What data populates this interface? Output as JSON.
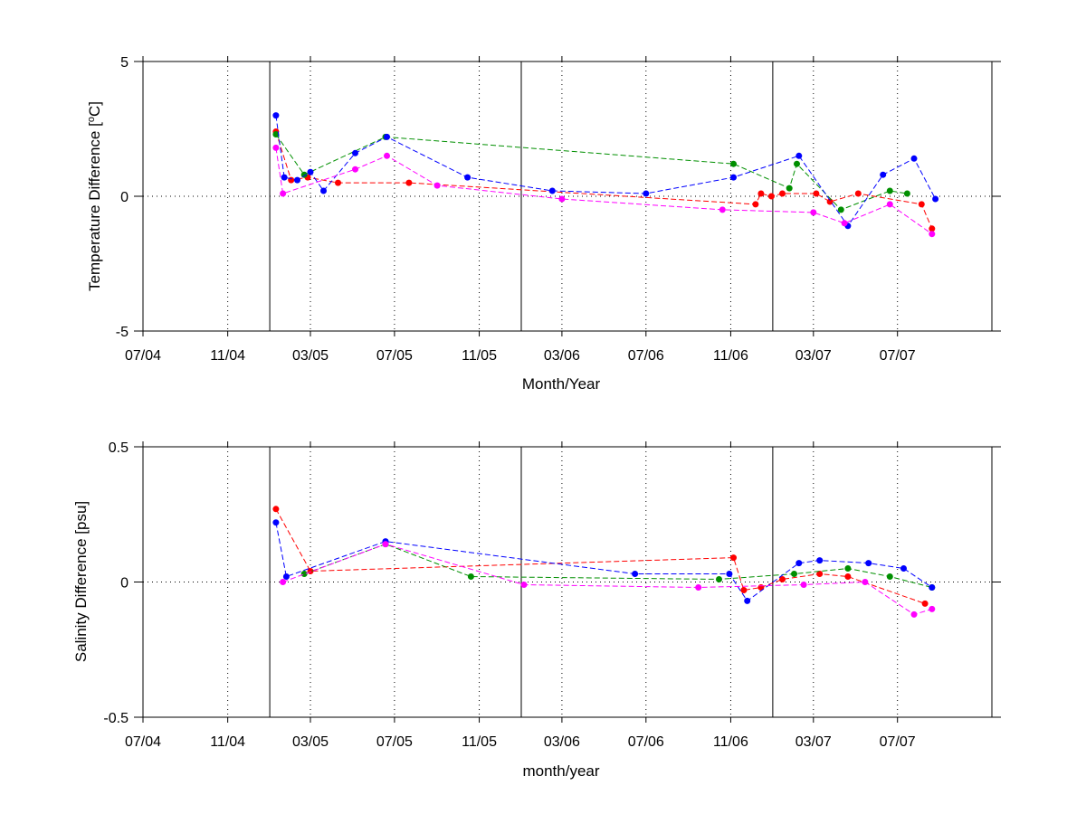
{
  "chart_data": [
    {
      "type": "scatter",
      "xlabel": "Month/Year",
      "ylabel": "Temperature Difference [",
      "ylabel_unit_sup": "o",
      "ylabel_unit": "C]",
      "xlim": [
        "2004-07-01",
        "2007-11-15"
      ],
      "ylim": [
        -5,
        5
      ],
      "yticks": [
        -5,
        0,
        5
      ],
      "xtick_labels": [
        "07/04",
        "11/04",
        "03/05",
        "07/05",
        "11/05",
        "03/06",
        "07/06",
        "11/06",
        "03/07",
        "07/07"
      ],
      "year_boundaries": [
        "2005-01-01",
        "2006-01-01",
        "2007-01-01"
      ],
      "zero_line": true,
      "grid": "dotted vertical at ticks",
      "series": [
        {
          "color": "#ff0000",
          "marker": "dot",
          "x": [
            "2005-01-10",
            "2005-02-01",
            "2005-02-25",
            "2005-04-10",
            "2005-07-22",
            "2006-12-07",
            "2006-12-15",
            "2006-12-30",
            "2007-01-15",
            "2007-03-05",
            "2007-03-25",
            "2007-05-05",
            "2007-08-05",
            "2007-08-20"
          ],
          "values": [
            2.4,
            0.6,
            0.7,
            0.5,
            0.5,
            -0.3,
            0.1,
            0.0,
            0.1,
            0.1,
            -0.2,
            0.1,
            -0.3,
            -1.2
          ]
        },
        {
          "color": "#008f00",
          "marker": "dot",
          "x": [
            "2005-01-10",
            "2005-02-20",
            "2005-06-18",
            "2006-11-05",
            "2007-01-25",
            "2007-02-05",
            "2007-04-10",
            "2007-06-20",
            "2007-07-15"
          ],
          "values": [
            2.3,
            0.8,
            2.2,
            1.2,
            0.3,
            1.2,
            -0.5,
            0.2,
            0.1
          ]
        },
        {
          "color": "#0000ff",
          "marker": "dot",
          "x": [
            "2005-01-10",
            "2005-01-22",
            "2005-02-10",
            "2005-03-01",
            "2005-03-20",
            "2005-05-05",
            "2005-06-20",
            "2005-10-15",
            "2006-02-15",
            "2006-07-01",
            "2006-11-05",
            "2007-02-08",
            "2007-04-20",
            "2007-06-10",
            "2007-07-25",
            "2007-08-25"
          ],
          "values": [
            3.0,
            0.7,
            0.6,
            0.9,
            0.2,
            1.6,
            2.2,
            0.7,
            0.2,
            0.1,
            0.7,
            1.5,
            -1.1,
            0.8,
            1.4,
            -0.1
          ]
        },
        {
          "color": "#ff00ff",
          "marker": "dot",
          "x": [
            "2005-01-10",
            "2005-01-20",
            "2005-05-05",
            "2005-06-20",
            "2005-09-01",
            "2006-03-01",
            "2006-10-20",
            "2007-03-01",
            "2007-04-15",
            "2007-06-20",
            "2007-08-20"
          ],
          "values": [
            1.8,
            0.1,
            1.0,
            1.5,
            0.4,
            -0.1,
            -0.5,
            -0.6,
            -1.0,
            -0.3,
            -1.4
          ]
        }
      ]
    },
    {
      "type": "scatter",
      "xlabel": "month/year",
      "ylabel": "Salinity Difference [psu]",
      "xlim": [
        "2004-07-01",
        "2007-11-15"
      ],
      "ylim": [
        -0.5,
        0.5
      ],
      "yticks": [
        -0.5,
        0,
        0.5
      ],
      "ytick_labels": [
        "-0.5",
        "0",
        "0.5"
      ],
      "xtick_labels": [
        "07/04",
        "11/04",
        "03/05",
        "07/05",
        "11/05",
        "03/06",
        "07/06",
        "11/06",
        "03/07",
        "07/07"
      ],
      "year_boundaries": [
        "2005-01-01",
        "2006-01-01",
        "2007-01-01"
      ],
      "zero_line": true,
      "grid": "dotted vertical at ticks",
      "series": [
        {
          "color": "#ff0000",
          "marker": "dot",
          "x": [
            "2005-01-10",
            "2005-03-01",
            "2006-11-05",
            "2006-11-20",
            "2006-12-15",
            "2007-01-15",
            "2007-03-10",
            "2007-04-20",
            "2007-08-10"
          ],
          "values": [
            0.27,
            0.04,
            0.09,
            -0.03,
            -0.02,
            0.01,
            0.03,
            0.02,
            -0.08
          ]
        },
        {
          "color": "#008f00",
          "marker": "dot",
          "x": [
            "2005-02-20",
            "2005-06-18",
            "2005-10-20",
            "2006-10-15",
            "2007-02-01",
            "2007-04-20",
            "2007-06-20",
            "2007-08-20"
          ],
          "values": [
            0.03,
            0.14,
            0.02,
            0.01,
            0.03,
            0.05,
            0.02,
            -0.02
          ]
        },
        {
          "color": "#0000ff",
          "marker": "dot",
          "x": [
            "2005-01-10",
            "2005-01-25",
            "2005-06-18",
            "2006-06-15",
            "2006-10-30",
            "2006-11-25",
            "2007-02-08",
            "2007-03-10",
            "2007-05-20",
            "2007-07-10",
            "2007-08-20"
          ],
          "values": [
            0.22,
            0.02,
            0.15,
            0.03,
            0.03,
            -0.07,
            0.07,
            0.08,
            0.07,
            0.05,
            -0.02
          ]
        },
        {
          "color": "#ff00ff",
          "marker": "dot",
          "x": [
            "2005-01-20",
            "2005-06-18",
            "2006-01-05",
            "2006-09-15",
            "2007-02-15",
            "2007-05-15",
            "2007-07-25",
            "2007-08-20"
          ],
          "values": [
            0.0,
            0.14,
            -0.01,
            -0.02,
            -0.01,
            0.0,
            -0.12,
            -0.1
          ]
        }
      ]
    }
  ]
}
